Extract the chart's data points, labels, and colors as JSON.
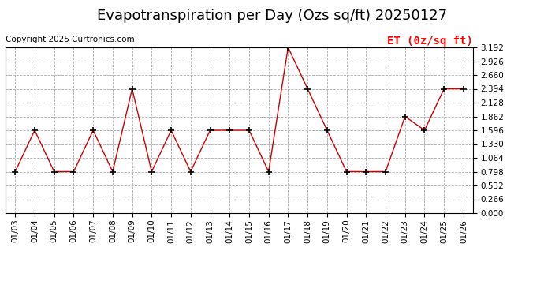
{
  "title": "Evapotranspiration per Day (Ozs sq/ft) 20250127",
  "copyright": "Copyright 2025 Curtronics.com",
  "legend_label": "ET (0z/sq ft)",
  "dates": [
    "01/03",
    "01/04",
    "01/05",
    "01/06",
    "01/07",
    "01/08",
    "01/09",
    "01/10",
    "01/11",
    "01/12",
    "01/13",
    "01/14",
    "01/15",
    "01/16",
    "01/17",
    "01/18",
    "01/19",
    "01/20",
    "01/21",
    "01/22",
    "01/23",
    "01/24",
    "01/25",
    "01/26"
  ],
  "values": [
    0.798,
    1.596,
    0.798,
    0.798,
    1.596,
    0.798,
    2.394,
    0.798,
    1.596,
    0.798,
    1.596,
    1.596,
    1.596,
    0.798,
    3.192,
    2.394,
    1.596,
    0.798,
    0.798,
    0.798,
    1.862,
    1.596,
    2.394,
    2.394
  ],
  "line_color": "#cc0000",
  "marker": "+",
  "marker_color": "#000000",
  "background_color": "#ffffff",
  "grid_color": "#aaaaaa",
  "ylim": [
    0.0,
    3.192
  ],
  "yticks": [
    0.0,
    0.266,
    0.532,
    0.798,
    1.064,
    1.33,
    1.596,
    1.862,
    2.128,
    2.394,
    2.66,
    2.926,
    3.192
  ],
  "title_fontsize": 13,
  "tick_fontsize": 7.5,
  "copyright_fontsize": 7.5,
  "legend_fontsize": 10
}
